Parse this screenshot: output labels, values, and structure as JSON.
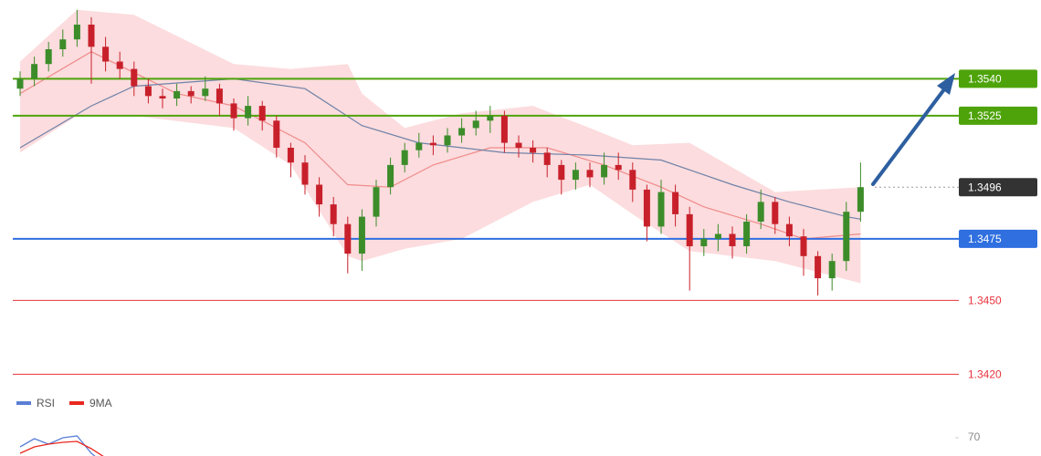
{
  "chart_data": [
    {
      "type": "candlestick",
      "up_color": "#3c8d2a",
      "down_color": "#c8202b",
      "ylim": [
        1.3412,
        1.3572
      ],
      "open": [
        1.3536,
        1.354,
        1.3546,
        1.3552,
        1.3556,
        1.3562,
        1.3553,
        1.3547,
        1.3544,
        1.3537,
        1.3533,
        1.3532,
        1.3535,
        1.3533,
        1.3536,
        1.353,
        1.3524,
        1.3529,
        1.3523,
        1.3512,
        1.3506,
        1.3497,
        1.3489,
        1.3481,
        1.3469,
        1.3484,
        1.3496,
        1.3505,
        1.3511,
        1.3514,
        1.3513,
        1.3517,
        1.352,
        1.3523,
        1.3525,
        1.3514,
        1.3512,
        1.351,
        1.3505,
        1.3499,
        1.3503,
        1.35,
        1.3505,
        1.3503,
        1.3495,
        1.348,
        1.3494,
        1.3485,
        1.3472,
        1.3475,
        1.3477,
        1.3472,
        1.3482,
        1.349,
        1.3481,
        1.3476,
        1.3468,
        1.3459,
        1.3466,
        1.3486
      ],
      "high": [
        1.3543,
        1.3549,
        1.3555,
        1.356,
        1.3568,
        1.3565,
        1.3557,
        1.3551,
        1.3547,
        1.354,
        1.3536,
        1.3538,
        1.3537,
        1.3541,
        1.3538,
        1.3532,
        1.3533,
        1.3531,
        1.3525,
        1.3514,
        1.3509,
        1.35,
        1.3492,
        1.3484,
        1.3487,
        1.3499,
        1.3508,
        1.3514,
        1.3518,
        1.3517,
        1.352,
        1.3524,
        1.3527,
        1.3529,
        1.3527,
        1.3517,
        1.3515,
        1.3512,
        1.3507,
        1.3506,
        1.3506,
        1.351,
        1.351,
        1.3506,
        1.3497,
        1.3499,
        1.3497,
        1.3488,
        1.3479,
        1.3481,
        1.348,
        1.3485,
        1.3495,
        1.3492,
        1.3484,
        1.3479,
        1.347,
        1.3469,
        1.349,
        1.3506
      ],
      "low": [
        1.3533,
        1.3537,
        1.3543,
        1.3549,
        1.3553,
        1.3538,
        1.3543,
        1.354,
        1.3533,
        1.353,
        1.3528,
        1.3529,
        1.353,
        1.3531,
        1.3525,
        1.3519,
        1.3521,
        1.3519,
        1.3508,
        1.35,
        1.3493,
        1.3484,
        1.3476,
        1.3461,
        1.3462,
        1.348,
        1.3493,
        1.3502,
        1.3508,
        1.3509,
        1.351,
        1.3514,
        1.3517,
        1.3518,
        1.351,
        1.3508,
        1.3506,
        1.35,
        1.3493,
        1.3495,
        1.3496,
        1.3497,
        1.3499,
        1.349,
        1.3474,
        1.3477,
        1.348,
        1.3454,
        1.3468,
        1.347,
        1.3467,
        1.3469,
        1.3479,
        1.3477,
        1.3472,
        1.346,
        1.3452,
        1.3454,
        1.3462,
        1.3482
      ],
      "close": [
        1.354,
        1.3546,
        1.3552,
        1.3556,
        1.3562,
        1.3553,
        1.3547,
        1.3544,
        1.3537,
        1.3533,
        1.3532,
        1.3535,
        1.3533,
        1.3536,
        1.353,
        1.3524,
        1.3529,
        1.3523,
        1.3512,
        1.3506,
        1.3497,
        1.3489,
        1.3481,
        1.3469,
        1.3484,
        1.3496,
        1.3505,
        1.3511,
        1.3514,
        1.3513,
        1.3517,
        1.352,
        1.3523,
        1.3525,
        1.3514,
        1.3512,
        1.351,
        1.3505,
        1.3499,
        1.3503,
        1.35,
        1.3505,
        1.3503,
        1.3495,
        1.348,
        1.3494,
        1.3485,
        1.3472,
        1.3475,
        1.3477,
        1.3472,
        1.3482,
        1.349,
        1.3481,
        1.3476,
        1.3468,
        1.3459,
        1.3466,
        1.3486,
        1.3496
      ],
      "band": {
        "color": "#fbd3d6",
        "x": [
          0,
          4,
          8,
          15,
          19,
          23,
          24,
          27,
          31,
          36,
          40,
          43,
          47,
          53,
          59
        ],
        "upper": [
          1.3547,
          1.3568,
          1.3566,
          1.3546,
          1.3544,
          1.3546,
          1.3534,
          1.352,
          1.3526,
          1.3529,
          1.352,
          1.3513,
          1.3514,
          1.3494,
          1.3496
        ],
        "lower": [
          1.351,
          1.3525,
          1.3525,
          1.352,
          1.3505,
          1.3468,
          1.3466,
          1.3471,
          1.3475,
          1.349,
          1.3497,
          1.3485,
          1.347,
          1.3466,
          1.3457
        ]
      },
      "overlays": [
        {
          "color": "#f08a8a",
          "x": [
            0,
            5,
            11,
            15,
            20,
            23,
            26,
            29,
            33,
            37,
            41,
            45,
            48,
            52,
            55,
            59
          ],
          "values": [
            1.3534,
            1.3551,
            1.3534,
            1.3529,
            1.3514,
            1.3497,
            1.3496,
            1.3505,
            1.3512,
            1.3512,
            1.3505,
            1.3496,
            1.3488,
            1.3481,
            1.3475,
            1.3477
          ]
        },
        {
          "color": "#6f82a8",
          "x": [
            0,
            5,
            8,
            15,
            20,
            24,
            28,
            34,
            40,
            45,
            50,
            54,
            58,
            59
          ],
          "values": [
            1.3512,
            1.3529,
            1.3537,
            1.354,
            1.3536,
            1.3521,
            1.3514,
            1.351,
            1.3509,
            1.3507,
            1.3497,
            1.349,
            1.3484,
            1.3483
          ]
        }
      ],
      "levels": [
        {
          "value": 1.354,
          "label": "1.3540",
          "color": "#4ea30a",
          "line": "solid",
          "box": true
        },
        {
          "value": 1.3525,
          "label": "1.3525",
          "color": "#4ea30a",
          "line": "solid",
          "box": true
        },
        {
          "value": 1.3496,
          "label": "1.3496",
          "color": "#333333",
          "line": "dotted",
          "box": true
        },
        {
          "value": 1.3475,
          "label": "1.3475",
          "color": "#2f6fe0",
          "line": "solid",
          "box": true
        },
        {
          "value": 1.345,
          "label": "1.3450",
          "color": "#e8323c",
          "line": "solid",
          "box": false
        },
        {
          "value": 1.342,
          "label": "1.3420",
          "color": "#e8323c",
          "line": "solid",
          "box": false
        }
      ]
    },
    {
      "type": "line",
      "ylim": [
        60,
        80
      ],
      "yticks": [
        70
      ],
      "series": [
        {
          "name": "RSI",
          "color": "#5b7fd6",
          "values": [
            65,
            69.5,
            66.5,
            70,
            71,
            61.5,
            55
          ]
        },
        {
          "name": "9MA",
          "color": "#e8281e",
          "values": [
            61.5,
            65,
            66.5,
            67.5,
            68,
            64,
            59
          ]
        }
      ]
    }
  ]
}
